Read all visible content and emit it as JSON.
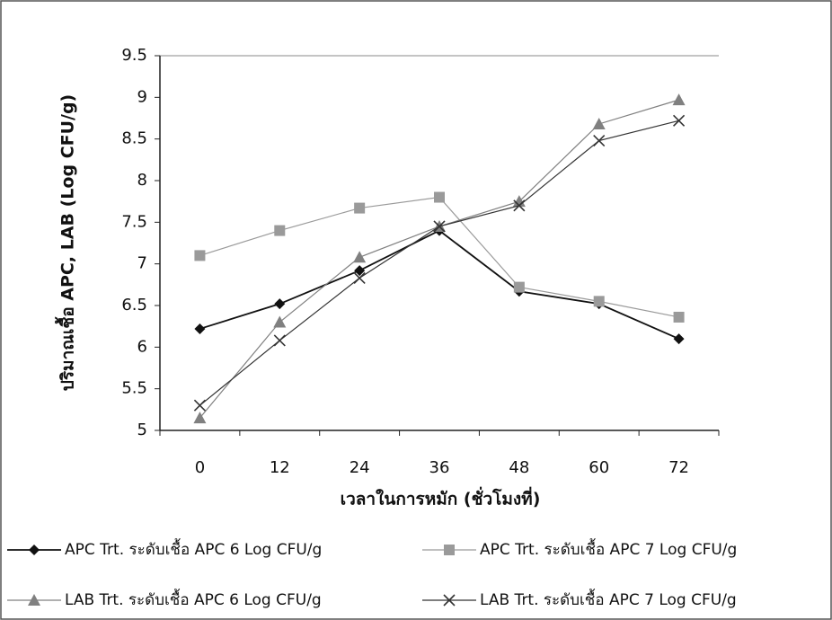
{
  "chart_data": {
    "type": "line",
    "y_label": "ปริมาณเชื้อ APC, LAB (Log CFU/g)",
    "x_label": "เวลาในการหมัก (ชั่วโมงที่)",
    "categories": [
      "0",
      "12",
      "24",
      "36",
      "48",
      "60",
      "72"
    ],
    "ylim": [
      5,
      9.5
    ],
    "yticks": [
      5,
      5.5,
      6,
      6.5,
      7,
      7.5,
      8,
      8.5,
      9,
      9.5
    ],
    "series": [
      {
        "name": "APC  Trt. ระดับเชื้อ APC 6 Log CFU/g",
        "color": "#111111",
        "marker": "diamond",
        "values": [
          6.22,
          6.52,
          6.92,
          7.4,
          6.67,
          6.52,
          6.1
        ]
      },
      {
        "name": "APC  Trt. ระดับเชื้อ APC 7 Log CFU/g",
        "color": "#9a9a9a",
        "marker": "square",
        "values": [
          7.1,
          7.4,
          7.67,
          7.8,
          6.72,
          6.55,
          6.36
        ]
      },
      {
        "name": "LAB  Trt. ระดับเชื้อ APC 6 Log CFU/g",
        "color": "#808080",
        "marker": "triangle",
        "values": [
          5.15,
          6.3,
          7.08,
          7.45,
          7.75,
          8.68,
          8.97
        ]
      },
      {
        "name": "LAB  Trt. ระดับเชื้อ APC  7 Log CFU/g",
        "color": "#333333",
        "marker": "x",
        "values": [
          5.3,
          6.08,
          6.83,
          7.45,
          7.7,
          8.48,
          8.72
        ]
      }
    ]
  }
}
